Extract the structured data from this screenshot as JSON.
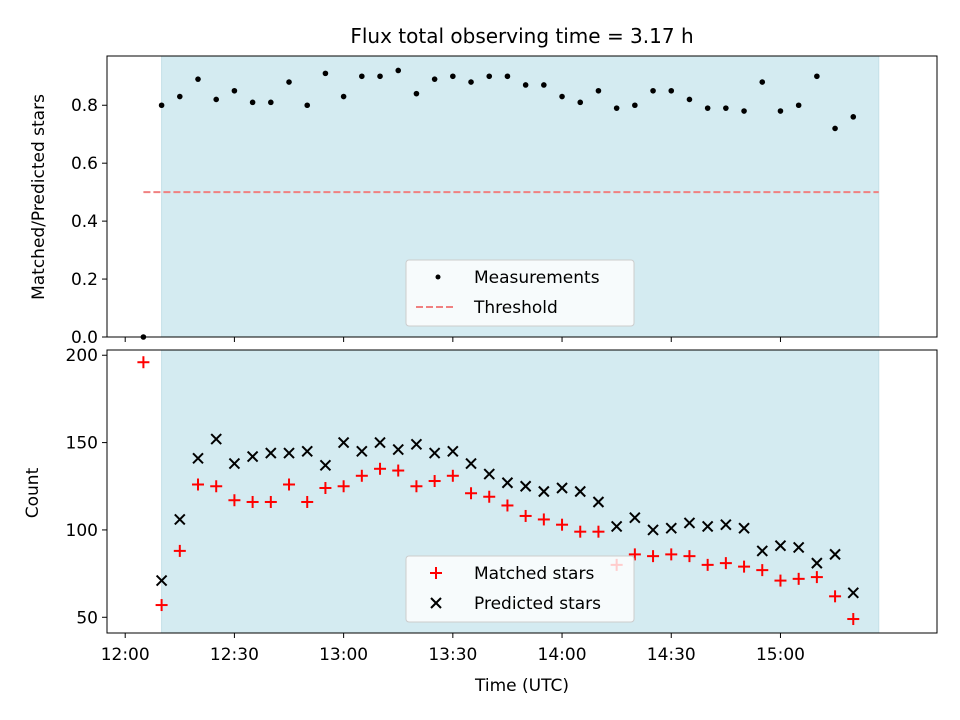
{
  "colors": {
    "shade": "#d4ebf1",
    "measurement": "#000000",
    "threshold": "#f08080",
    "matched": "#ff0000",
    "predicted": "#000000"
  },
  "chart_data": [
    {
      "type": "scatter",
      "title": "Flux total observing time = 3.17 h",
      "xlabel": "",
      "ylabel": "Matched/Predicted stars",
      "x_range": [
        "11:55",
        "15:43"
      ],
      "ylim": [
        0,
        0.97
      ],
      "yticks": [
        0.0,
        0.2,
        0.4,
        0.6,
        0.8
      ],
      "ytick_labels": [
        "0.0",
        "0.2",
        "0.4",
        "0.6",
        "0.8"
      ],
      "shaded_interval": [
        "12:10",
        "15:27"
      ],
      "grid": false,
      "legend_position": "lower-center",
      "legend": [
        "Measurements",
        "Threshold"
      ],
      "threshold": {
        "y": 0.5,
        "x_start": "12:05",
        "x_end": "15:27"
      },
      "series": [
        {
          "name": "Measurements",
          "x": [
            "12:05",
            "12:10",
            "12:15",
            "12:20",
            "12:25",
            "12:30",
            "12:35",
            "12:40",
            "12:45",
            "12:50",
            "12:55",
            "13:00",
            "13:05",
            "13:10",
            "13:15",
            "13:20",
            "13:25",
            "13:30",
            "13:35",
            "13:40",
            "13:45",
            "13:50",
            "13:55",
            "14:00",
            "14:05",
            "14:10",
            "14:15",
            "14:20",
            "14:25",
            "14:30",
            "14:35",
            "14:40",
            "14:45",
            "14:50",
            "14:55",
            "15:00",
            "15:05",
            "15:10",
            "15:15",
            "15:20"
          ],
          "y": [
            0.0,
            0.8,
            0.83,
            0.89,
            0.82,
            0.85,
            0.81,
            0.81,
            0.88,
            0.8,
            0.91,
            0.83,
            0.9,
            0.9,
            0.92,
            0.84,
            0.89,
            0.9,
            0.88,
            0.9,
            0.9,
            0.87,
            0.87,
            0.83,
            0.81,
            0.85,
            0.79,
            0.8,
            0.85,
            0.85,
            0.82,
            0.79,
            0.79,
            0.78,
            0.88,
            0.78,
            0.8,
            0.9,
            0.72,
            0.76
          ]
        }
      ]
    },
    {
      "type": "scatter",
      "title": "",
      "xlabel": "Time (UTC)",
      "ylabel": "Count",
      "x_range": [
        "11:55",
        "15:43"
      ],
      "ylim": [
        41,
        203
      ],
      "yticks": [
        50,
        100,
        150,
        200
      ],
      "ytick_labels": [
        "50",
        "100",
        "150",
        "200"
      ],
      "xticks": [
        "12:00",
        "12:30",
        "13:00",
        "13:30",
        "14:00",
        "14:30",
        "15:00"
      ],
      "xtick_labels": [
        "12:00",
        "12:30",
        "13:00",
        "13:30",
        "14:00",
        "14:30",
        "15:00"
      ],
      "shaded_interval": [
        "12:10",
        "15:27"
      ],
      "grid": false,
      "legend_position": "lower-center",
      "legend": [
        "Matched stars",
        "Predicted stars"
      ],
      "series": [
        {
          "name": "Matched stars",
          "marker": "plus",
          "x": [
            "12:05",
            "12:10",
            "12:15",
            "12:20",
            "12:25",
            "12:30",
            "12:35",
            "12:40",
            "12:45",
            "12:50",
            "12:55",
            "13:00",
            "13:05",
            "13:10",
            "13:15",
            "13:20",
            "13:25",
            "13:30",
            "13:35",
            "13:40",
            "13:45",
            "13:50",
            "13:55",
            "14:00",
            "14:05",
            "14:10",
            "14:15",
            "14:20",
            "14:25",
            "14:30",
            "14:35",
            "14:40",
            "14:45",
            "14:50",
            "14:55",
            "15:00",
            "15:05",
            "15:10",
            "15:15",
            "15:20"
          ],
          "y": [
            196,
            57,
            88,
            126,
            125,
            117,
            116,
            116,
            126,
            116,
            124,
            125,
            131,
            135,
            134,
            125,
            128,
            131,
            121,
            119,
            114,
            108,
            106,
            103,
            99,
            99,
            80,
            86,
            85,
            86,
            85,
            80,
            81,
            79,
            77,
            71,
            72,
            73,
            62,
            49
          ]
        },
        {
          "name": "Predicted stars",
          "marker": "cross",
          "x": [
            "12:10",
            "12:15",
            "12:20",
            "12:25",
            "12:30",
            "12:35",
            "12:40",
            "12:45",
            "12:50",
            "12:55",
            "13:00",
            "13:05",
            "13:10",
            "13:15",
            "13:20",
            "13:25",
            "13:30",
            "13:35",
            "13:40",
            "13:45",
            "13:50",
            "13:55",
            "14:00",
            "14:05",
            "14:10",
            "14:15",
            "14:20",
            "14:25",
            "14:30",
            "14:35",
            "14:40",
            "14:45",
            "14:50",
            "14:55",
            "15:00",
            "15:05",
            "15:10",
            "15:15",
            "15:20"
          ],
          "y": [
            71,
            106,
            141,
            152,
            138,
            142,
            144,
            144,
            145,
            137,
            150,
            145,
            150,
            146,
            149,
            144,
            145,
            138,
            132,
            127,
            125,
            122,
            124,
            122,
            116,
            102,
            107,
            100,
            101,
            104,
            102,
            103,
            101,
            88,
            91,
            90,
            81,
            86,
            64
          ]
        }
      ]
    }
  ]
}
